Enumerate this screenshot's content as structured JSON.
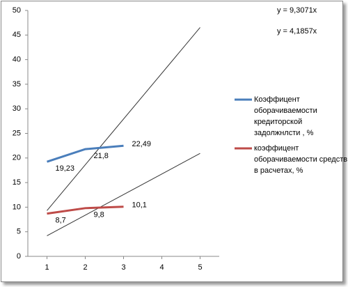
{
  "chart_data": {
    "type": "line",
    "x": [
      1,
      2,
      3
    ],
    "series": [
      {
        "name": "Коэффицент оборачиваемости кредиторской задолжнлсти , %",
        "color": "#4a7ebb",
        "values": [
          19.23,
          21.8,
          22.49
        ],
        "value_labels": [
          "19,23",
          "21,8",
          "22,49"
        ]
      },
      {
        "name": "коэффицент оборачиваемости средств в расчетах, %",
        "color": "#be4b48",
        "values": [
          8.7,
          9.8,
          10.1
        ],
        "value_labels": [
          "8,7",
          "9,8",
          "10,1"
        ]
      }
    ],
    "trendlines": [
      {
        "slope": 9.3071,
        "label": "y = 9,3071x",
        "x": [
          1,
          5
        ]
      },
      {
        "slope": 4.1857,
        "label": "y = 4,1857x",
        "x": [
          1,
          5
        ]
      }
    ],
    "xlim": [
      0.5,
      5.5
    ],
    "xticks": [
      1,
      2,
      3,
      4,
      5
    ],
    "ylim": [
      0,
      50
    ],
    "yticks": [
      0,
      5,
      10,
      15,
      20,
      25,
      30,
      35,
      40,
      45,
      50
    ],
    "legend": "right"
  }
}
